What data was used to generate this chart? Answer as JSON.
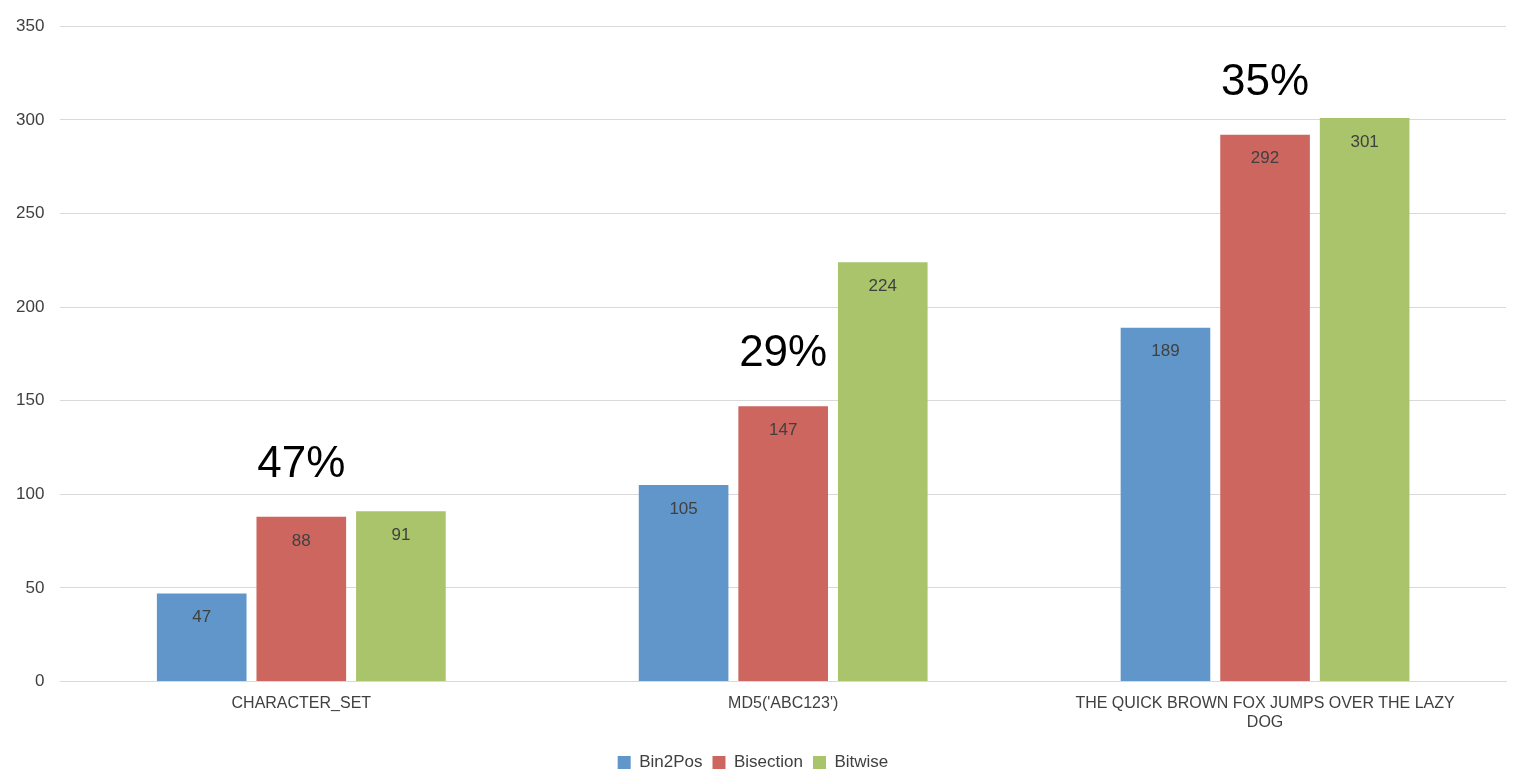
{
  "chart_data": {
    "type": "bar",
    "categories": [
      "CHARACTER_SET",
      "MD5('ABC123')",
      "THE QUICK BROWN FOX JUMPS OVER THE LAZY DOG"
    ],
    "series": [
      {
        "name": "Bin2Pos",
        "color": "#6096c9",
        "values": [
          47,
          105,
          189
        ]
      },
      {
        "name": "Bisection",
        "color": "#cd665f",
        "values": [
          88,
          147,
          292
        ]
      },
      {
        "name": "Bitwise",
        "color": "#a9c46b",
        "values": [
          91,
          224,
          301
        ]
      }
    ],
    "ylim": [
      0,
      350
    ],
    "yticks": [
      0,
      50,
      100,
      150,
      200,
      250,
      300,
      350
    ],
    "grid": "y",
    "legend": "bottom",
    "data_labels": true,
    "annotations": [
      "47%",
      "29%",
      "35%"
    ]
  }
}
